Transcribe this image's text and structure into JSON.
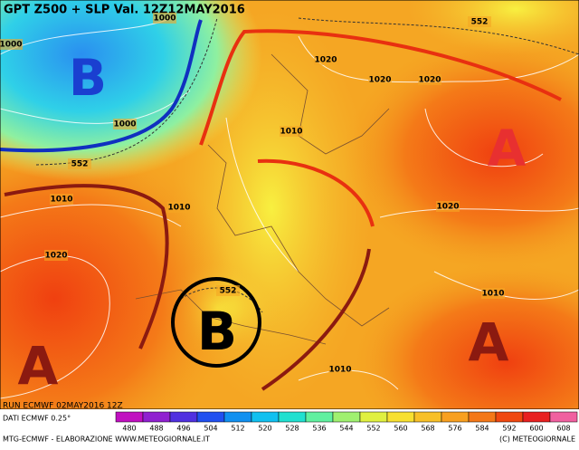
{
  "title": "GPT Z500 + SLP Val. 12Z12MAY2016",
  "isobar_labels": [
    "1000",
    "1000",
    "1000",
    "552",
    "1020",
    "1020",
    "1020",
    "552",
    "1010",
    "1010",
    "1010",
    "1020",
    "1020",
    "1010",
    "552",
    "1010"
  ],
  "pressure_centers": [
    "B",
    "A",
    "B",
    "A",
    "A"
  ],
  "footer": {
    "run": "RUN ECMWF 02MAY2016 12Z",
    "data_source": "DATI ECMWF 0.25°",
    "credit_left": "MTG-ECMWF - ELABORAZIONE WWW.METEOGIORNALE.IT",
    "credit_right": "(C) METEOGIORNALE"
  },
  "colorbar": {
    "ticks": [
      480,
      488,
      496,
      504,
      512,
      520,
      528,
      536,
      544,
      552,
      560,
      568,
      576,
      584,
      592,
      600,
      608
    ]
  }
}
